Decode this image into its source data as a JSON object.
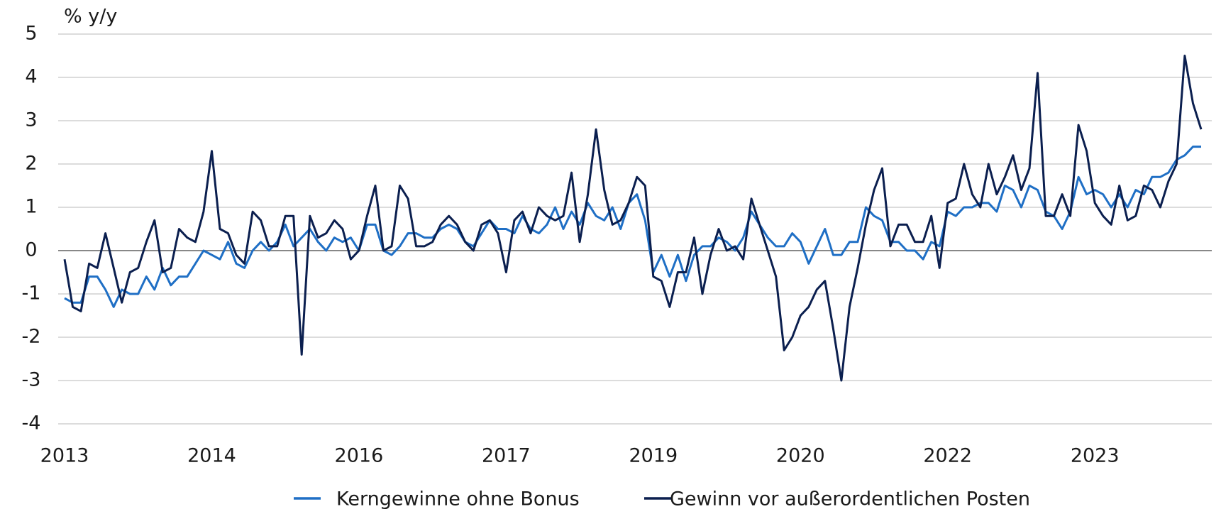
{
  "chart_data": {
    "type": "line",
    "y_axis_label": "% y/y",
    "categories": [
      "2013",
      null,
      null,
      null,
      null,
      null,
      null,
      null,
      null,
      null,
      null,
      null,
      null,
      null,
      null,
      null,
      null,
      null,
      "2014",
      null,
      null,
      null,
      null,
      null,
      null,
      null,
      null,
      null,
      null,
      null,
      null,
      null,
      null,
      null,
      null,
      null,
      "2016",
      null,
      null,
      null,
      null,
      null,
      null,
      null,
      null,
      null,
      null,
      null,
      null,
      null,
      null,
      null,
      null,
      null,
      "2017",
      null,
      null,
      null,
      null,
      null,
      null,
      null,
      null,
      null,
      null,
      null,
      null,
      null,
      null,
      null,
      null,
      null,
      "2019",
      null,
      null,
      null,
      null,
      null,
      null,
      null,
      null,
      null,
      null,
      null,
      null,
      null,
      null,
      null,
      null,
      null,
      "2020",
      null,
      null,
      null,
      null,
      null,
      null,
      null,
      null,
      null,
      null,
      null,
      null,
      null,
      null,
      null,
      null,
      null,
      "2022",
      null,
      null,
      null,
      null,
      null,
      null,
      null,
      null,
      null,
      null,
      null,
      null,
      null,
      null,
      null,
      null,
      null,
      "2023",
      null,
      null,
      null,
      null,
      null,
      null,
      null,
      null,
      null,
      null,
      null,
      null,
      null
    ],
    "series": [
      {
        "name": "Kerngewinne ohne Bonus",
        "color": "#1f6fc5",
        "values": [
          -1.1,
          -1.2,
          -1.2,
          -0.6,
          -0.6,
          -0.9,
          -1.3,
          -0.9,
          -1.0,
          -1.0,
          -0.6,
          -0.9,
          -0.4,
          -0.8,
          -0.6,
          -0.6,
          -0.3,
          0.0,
          -0.1,
          -0.2,
          0.2,
          -0.3,
          -0.4,
          0.0,
          0.2,
          0.0,
          0.2,
          0.6,
          0.1,
          0.3,
          0.5,
          0.2,
          0.0,
          0.3,
          0.2,
          0.3,
          0.0,
          0.6,
          0.6,
          0.0,
          -0.1,
          0.1,
          0.4,
          0.4,
          0.3,
          0.3,
          0.5,
          0.6,
          0.5,
          0.2,
          0.1,
          0.4,
          0.7,
          0.5,
          0.5,
          0.4,
          0.8,
          0.5,
          0.4,
          0.6,
          1.0,
          0.5,
          0.9,
          0.6,
          1.1,
          0.8,
          0.7,
          1.0,
          0.5,
          1.1,
          1.3,
          0.7,
          -0.5,
          -0.1,
          -0.6,
          -0.1,
          -0.7,
          -0.1,
          0.1,
          0.1,
          0.3,
          0.2,
          0.0,
          0.3,
          0.9,
          0.6,
          0.3,
          0.1,
          0.1,
          0.4,
          0.2,
          -0.3,
          0.1,
          0.5,
          -0.1,
          -0.1,
          0.2,
          0.2,
          1.0,
          0.8,
          0.7,
          0.2,
          0.2,
          0.0,
          0.0,
          -0.2,
          0.2,
          0.1,
          0.9,
          0.8,
          1.0,
          1.0,
          1.1,
          1.1,
          0.9,
          1.5,
          1.4,
          1.0,
          1.5,
          1.4,
          0.9,
          0.8,
          0.5,
          0.9,
          1.7,
          1.3,
          1.4,
          1.3,
          1.0,
          1.3,
          1.0,
          1.4,
          1.3,
          1.7,
          1.7,
          1.8,
          2.1,
          2.2,
          2.4,
          2.4
        ]
      },
      {
        "name": "Gewinn vor außerordentlichen Posten",
        "color": "#0b1f4f",
        "values": [
          -0.2,
          -1.3,
          -1.4,
          -0.3,
          -0.4,
          0.4,
          -0.4,
          -1.2,
          -0.5,
          -0.4,
          0.2,
          0.7,
          -0.5,
          -0.4,
          0.5,
          0.3,
          0.2,
          0.9,
          2.3,
          0.5,
          0.4,
          -0.1,
          -0.3,
          0.9,
          0.7,
          0.1,
          0.1,
          0.8,
          0.8,
          -2.4,
          0.8,
          0.3,
          0.4,
          0.7,
          0.5,
          -0.2,
          0.0,
          0.8,
          1.5,
          0.0,
          0.1,
          1.5,
          1.2,
          0.1,
          0.1,
          0.2,
          0.6,
          0.8,
          0.6,
          0.2,
          0.0,
          0.6,
          0.7,
          0.4,
          -0.5,
          0.7,
          0.9,
          0.4,
          1.0,
          0.8,
          0.7,
          0.8,
          1.8,
          0.2,
          1.3,
          2.8,
          1.4,
          0.6,
          0.7,
          1.1,
          1.7,
          1.5,
          -0.6,
          -0.7,
          -1.3,
          -0.5,
          -0.5,
          0.3,
          -1.0,
          -0.1,
          0.5,
          0.0,
          0.1,
          -0.2,
          1.2,
          0.6,
          0.0,
          -0.6,
          -2.3,
          -2.0,
          -1.5,
          -1.3,
          -0.9,
          -0.7,
          -1.8,
          -3.0,
          -1.3,
          -0.4,
          0.6,
          1.4,
          1.9,
          0.1,
          0.6,
          0.6,
          0.2,
          0.2,
          0.8,
          -0.4,
          1.1,
          1.2,
          2.0,
          1.3,
          1.0,
          2.0,
          1.3,
          1.7,
          2.2,
          1.4,
          1.9,
          4.1,
          0.8,
          0.8,
          1.3,
          0.8,
          2.9,
          2.3,
          1.1,
          0.8,
          0.6,
          1.5,
          0.7,
          0.8,
          1.5,
          1.4,
          1.0,
          1.6,
          2.0,
          4.5,
          3.4,
          2.8
        ]
      }
    ],
    "ylim": [
      -4,
      5
    ],
    "yticks": [
      -4,
      -3,
      -2,
      -1,
      0,
      1,
      2,
      3,
      4,
      5
    ],
    "grid": true,
    "legend": "bottom"
  }
}
